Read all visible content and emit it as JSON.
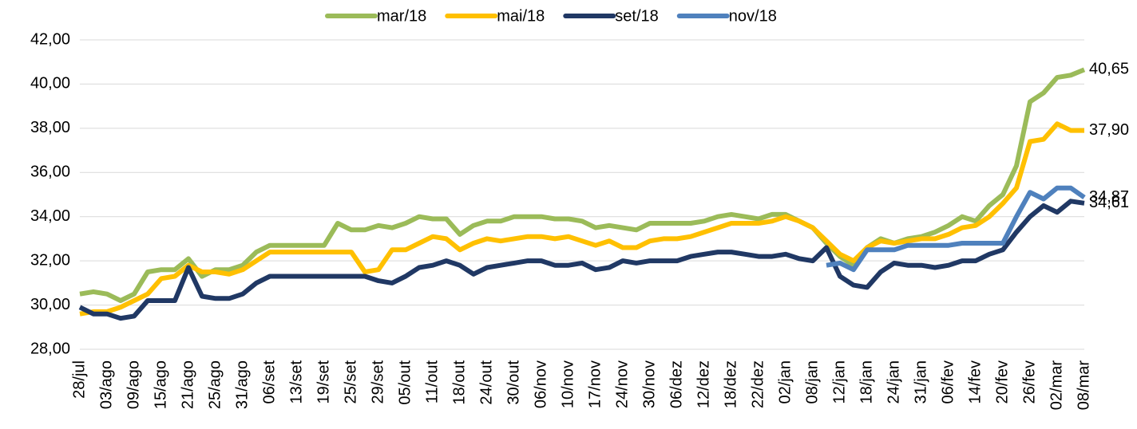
{
  "chart_data": {
    "type": "line",
    "categories": [
      "28/jul",
      null,
      "03/ago",
      null,
      "09/ago",
      null,
      "15/ago",
      null,
      "21/ago",
      null,
      "25/ago",
      null,
      "31/ago",
      null,
      "06/set",
      null,
      "13/set",
      null,
      "19/set",
      null,
      "25/set",
      null,
      "29/set",
      null,
      "05/out",
      null,
      "11/out",
      null,
      "18/out",
      null,
      "24/out",
      null,
      "30/out",
      null,
      "06/nov",
      null,
      "10/nov",
      null,
      "17/nov",
      null,
      "24/nov",
      null,
      "30/nov",
      null,
      "06/dez",
      null,
      "12/dez",
      null,
      "18/dez",
      null,
      "22/dez",
      null,
      "02/jan",
      null,
      "08/jan",
      null,
      "12/jan",
      null,
      "18/jan",
      null,
      "24/jan",
      null,
      "31/jan",
      null,
      "06/fev",
      null,
      "14/fev",
      null,
      "20/fev",
      null,
      "26/fev",
      null,
      "02/mar",
      null,
      "08/mar"
    ],
    "series": [
      {
        "name": "mar/18",
        "color": "#9bbb59",
        "values": [
          30.5,
          30.6,
          30.5,
          30.2,
          30.5,
          31.5,
          31.6,
          31.6,
          32.1,
          31.3,
          31.6,
          31.6,
          31.8,
          32.4,
          32.7,
          32.7,
          32.7,
          32.7,
          32.7,
          33.7,
          33.4,
          33.4,
          33.6,
          33.5,
          33.7,
          34.0,
          33.9,
          33.9,
          33.2,
          33.6,
          33.8,
          33.8,
          34.0,
          34.0,
          34.0,
          33.9,
          33.9,
          33.8,
          33.5,
          33.6,
          33.5,
          33.4,
          33.7,
          33.7,
          33.7,
          33.7,
          33.8,
          34.0,
          34.1,
          34.0,
          33.9,
          34.1,
          34.1,
          33.8,
          33.5,
          32.8,
          32.2,
          31.8,
          32.6,
          33.0,
          32.8,
          33.0,
          33.1,
          33.3,
          33.6,
          34.0,
          33.8,
          34.5,
          35.0,
          36.3,
          39.2,
          39.6,
          40.3,
          40.4,
          40.65
        ],
        "value_labels": [
          null,
          null,
          null,
          null,
          null,
          null,
          null,
          null,
          null,
          null,
          null,
          null,
          null,
          null,
          null,
          null,
          null,
          null,
          null,
          null,
          null,
          null,
          null,
          null,
          null,
          null,
          null,
          null,
          null,
          null,
          null,
          null,
          null,
          null,
          null,
          null,
          null,
          null,
          null,
          null,
          null,
          null,
          null,
          null,
          null,
          null,
          null,
          null,
          null,
          null,
          null,
          null,
          null,
          null,
          null,
          null,
          null,
          null,
          null,
          null,
          null,
          null,
          null,
          null,
          null,
          null,
          null,
          null,
          null,
          null,
          null,
          null,
          null,
          null,
          "40,65"
        ]
      },
      {
        "name": "mai/18",
        "color": "#ffc000",
        "values": [
          29.6,
          29.7,
          29.7,
          29.9,
          30.2,
          30.5,
          31.2,
          31.3,
          31.8,
          31.5,
          31.5,
          31.4,
          31.6,
          32.0,
          32.4,
          32.4,
          32.4,
          32.4,
          32.4,
          32.4,
          32.4,
          31.5,
          31.6,
          32.5,
          32.5,
          32.8,
          33.1,
          33.0,
          32.5,
          32.8,
          33.0,
          32.9,
          33.0,
          33.1,
          33.1,
          33.0,
          33.1,
          32.9,
          32.7,
          32.9,
          32.6,
          32.6,
          32.9,
          33.0,
          33.0,
          33.1,
          33.3,
          33.5,
          33.7,
          33.7,
          33.7,
          33.8,
          34.0,
          33.8,
          33.5,
          32.9,
          32.3,
          32.0,
          32.6,
          32.9,
          32.8,
          32.9,
          33.0,
          33.0,
          33.2,
          33.5,
          33.6,
          34.0,
          34.6,
          35.3,
          37.4,
          37.5,
          38.2,
          37.9,
          37.9
        ],
        "value_labels": [
          null,
          null,
          null,
          null,
          null,
          null,
          null,
          null,
          null,
          null,
          null,
          null,
          null,
          null,
          null,
          null,
          null,
          null,
          null,
          null,
          null,
          null,
          null,
          null,
          null,
          null,
          null,
          null,
          null,
          null,
          null,
          null,
          null,
          null,
          null,
          null,
          null,
          null,
          null,
          null,
          null,
          null,
          null,
          null,
          null,
          null,
          null,
          null,
          null,
          null,
          null,
          null,
          null,
          null,
          null,
          null,
          null,
          null,
          null,
          null,
          null,
          null,
          null,
          null,
          null,
          null,
          null,
          null,
          null,
          null,
          null,
          null,
          null,
          null,
          "37,90"
        ]
      },
      {
        "name": "set/18",
        "color": "#203864",
        "values": [
          29.9,
          29.6,
          29.6,
          29.4,
          29.5,
          30.2,
          30.2,
          30.2,
          31.7,
          30.4,
          30.3,
          30.3,
          30.5,
          31.0,
          31.3,
          31.3,
          31.3,
          31.3,
          31.3,
          31.3,
          31.3,
          31.3,
          31.1,
          31.0,
          31.3,
          31.7,
          31.8,
          32.0,
          31.8,
          31.4,
          31.7,
          31.8,
          31.9,
          32.0,
          32.0,
          31.8,
          31.8,
          31.9,
          31.6,
          31.7,
          32.0,
          31.9,
          32.0,
          32.0,
          32.0,
          32.2,
          32.3,
          32.4,
          32.4,
          32.3,
          32.2,
          32.2,
          32.3,
          32.1,
          32.0,
          32.6,
          31.3,
          30.9,
          30.8,
          31.5,
          31.9,
          31.8,
          31.8,
          31.7,
          31.8,
          32.0,
          32.0,
          32.3,
          32.5,
          33.3,
          34.0,
          34.5,
          34.2,
          34.7,
          34.61
        ],
        "value_labels": [
          null,
          null,
          null,
          null,
          null,
          null,
          null,
          null,
          null,
          null,
          null,
          null,
          null,
          null,
          null,
          null,
          null,
          null,
          null,
          null,
          null,
          null,
          null,
          null,
          null,
          null,
          null,
          null,
          null,
          null,
          null,
          null,
          null,
          null,
          null,
          null,
          null,
          null,
          null,
          null,
          null,
          null,
          null,
          null,
          null,
          null,
          null,
          null,
          null,
          null,
          null,
          null,
          null,
          null,
          null,
          null,
          null,
          null,
          null,
          null,
          null,
          null,
          null,
          null,
          null,
          null,
          null,
          null,
          null,
          null,
          null,
          null,
          null,
          null,
          "34,61"
        ]
      },
      {
        "name": "nov/18",
        "color": "#4f81bd",
        "values": [
          null,
          null,
          null,
          null,
          null,
          null,
          null,
          null,
          null,
          null,
          null,
          null,
          null,
          null,
          null,
          null,
          null,
          null,
          null,
          null,
          null,
          null,
          null,
          null,
          null,
          null,
          null,
          null,
          null,
          null,
          null,
          null,
          null,
          null,
          null,
          null,
          null,
          null,
          null,
          null,
          null,
          null,
          null,
          null,
          null,
          null,
          null,
          null,
          null,
          null,
          null,
          null,
          null,
          null,
          null,
          31.8,
          31.9,
          31.6,
          32.5,
          32.5,
          32.5,
          32.7,
          32.7,
          32.7,
          32.7,
          32.8,
          32.8,
          32.8,
          32.8,
          34.0,
          35.1,
          34.8,
          35.3,
          35.3,
          34.87
        ],
        "value_labels": [
          null,
          null,
          null,
          null,
          null,
          null,
          null,
          null,
          null,
          null,
          null,
          null,
          null,
          null,
          null,
          null,
          null,
          null,
          null,
          null,
          null,
          null,
          null,
          null,
          null,
          null,
          null,
          null,
          null,
          null,
          null,
          null,
          null,
          null,
          null,
          null,
          null,
          null,
          null,
          null,
          null,
          null,
          null,
          null,
          null,
          null,
          null,
          null,
          null,
          null,
          null,
          null,
          null,
          null,
          null,
          null,
          null,
          null,
          null,
          null,
          null,
          null,
          null,
          null,
          null,
          null,
          null,
          null,
          null,
          null,
          null,
          null,
          null,
          null,
          "34,87"
        ]
      }
    ],
    "ylim": [
      28,
      42
    ],
    "yticks": [
      {
        "value": 28,
        "label": "28,00"
      },
      {
        "value": 30,
        "label": "30,00"
      },
      {
        "value": 32,
        "label": "32,00"
      },
      {
        "value": 34,
        "label": "34,00"
      },
      {
        "value": 36,
        "label": "36,00"
      },
      {
        "value": 38,
        "label": "38,00"
      },
      {
        "value": 40,
        "label": "40,00"
      },
      {
        "value": 42,
        "label": "42,00"
      }
    ],
    "grid": true,
    "legend": "top"
  }
}
